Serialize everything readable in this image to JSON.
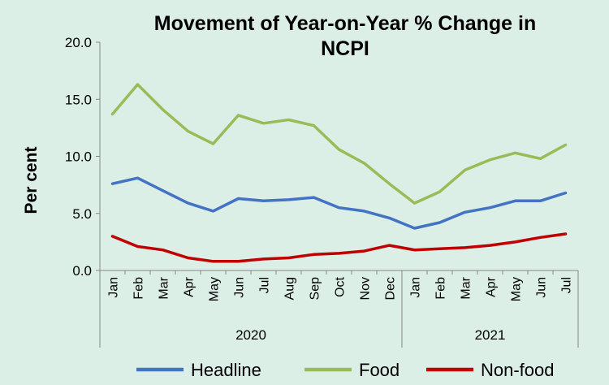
{
  "chart_data": {
    "type": "line",
    "title_line1": "Movement of Year-on-Year % Change in",
    "title_line2": "NCPI",
    "ylabel": "Per cent",
    "xlabel": "",
    "ylim": [
      0,
      20
    ],
    "yticks": [
      "0.0",
      "5.0",
      "10.0",
      "15.0",
      "20.0"
    ],
    "grid": false,
    "legend_position": "bottom",
    "categories": [
      "Jan",
      "Feb",
      "Mar",
      "Apr",
      "May",
      "Jun",
      "Jul",
      "Aug",
      "Sep",
      "Oct",
      "Nov",
      "Dec",
      "Jan",
      "Feb",
      "Mar",
      "Apr",
      "May",
      "Jun",
      "Jul"
    ],
    "year_groups": [
      {
        "label": "2020",
        "count": 12
      },
      {
        "label": "2021",
        "count": 7
      }
    ],
    "series": [
      {
        "name": "Headline",
        "color": "#4472c4",
        "values": [
          7.6,
          8.1,
          7.0,
          5.9,
          5.2,
          6.3,
          6.1,
          6.2,
          6.4,
          5.5,
          5.2,
          4.6,
          3.7,
          4.2,
          5.1,
          5.5,
          6.1,
          6.1,
          6.8
        ]
      },
      {
        "name": "Food",
        "color": "#9bbb59",
        "values": [
          13.7,
          16.3,
          14.1,
          12.2,
          11.1,
          13.6,
          12.9,
          13.2,
          12.7,
          10.6,
          9.4,
          7.6,
          5.9,
          6.9,
          8.8,
          9.7,
          10.3,
          9.8,
          11.0
        ]
      },
      {
        "name": "Non-food",
        "color": "#c00000",
        "values": [
          3.0,
          2.1,
          1.8,
          1.1,
          0.8,
          0.8,
          1.0,
          1.1,
          1.4,
          1.5,
          1.7,
          2.2,
          1.8,
          1.9,
          2.0,
          2.2,
          2.5,
          2.9,
          3.2
        ]
      }
    ]
  }
}
